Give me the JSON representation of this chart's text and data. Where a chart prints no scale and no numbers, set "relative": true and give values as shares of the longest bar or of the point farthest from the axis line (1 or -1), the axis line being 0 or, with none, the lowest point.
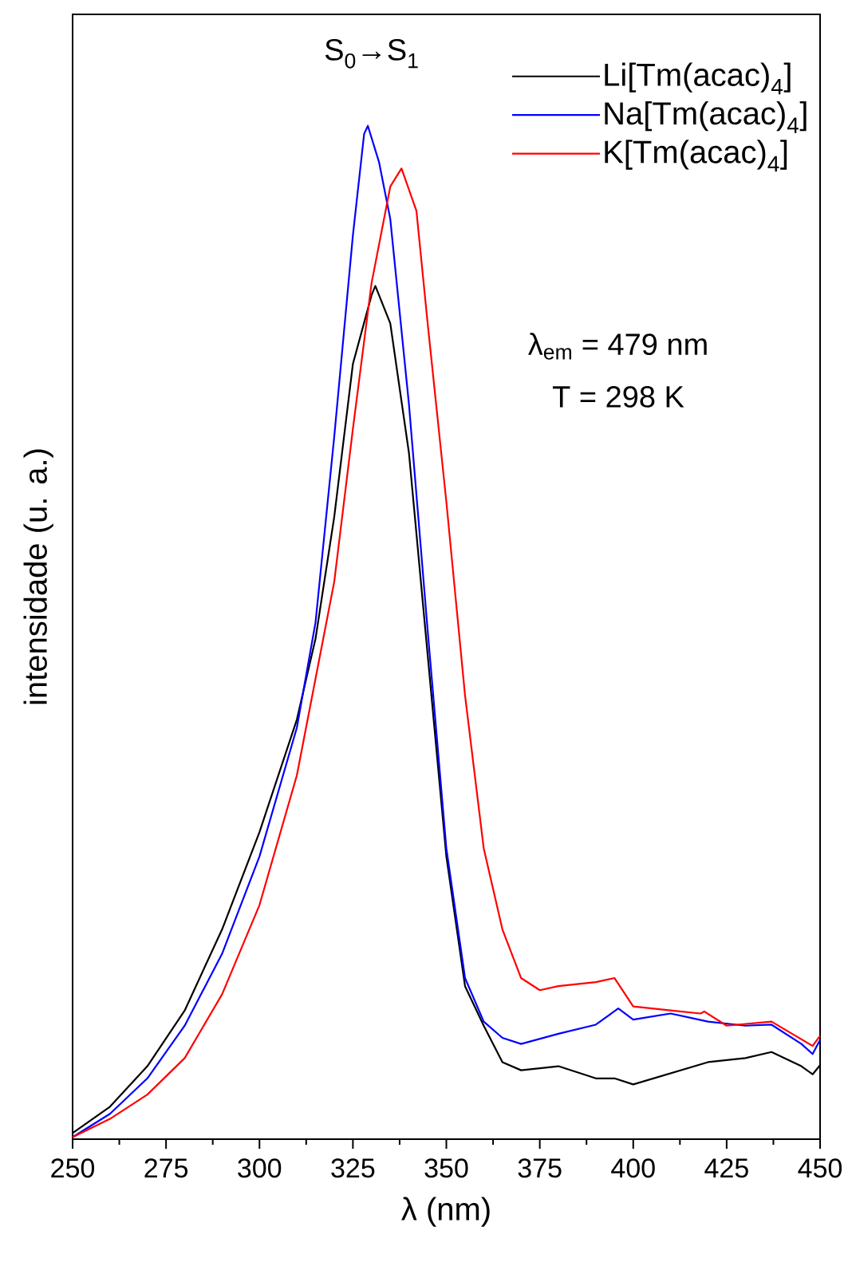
{
  "chart_data": {
    "type": "line",
    "relative": true,
    "xlabel": "λ (nm)",
    "ylabel": "intensidade (u. a.)",
    "xlim": [
      250,
      450
    ],
    "xticks": [
      250,
      275,
      300,
      325,
      350,
      375,
      400,
      425,
      450
    ],
    "legend": "top right",
    "grid": false,
    "marker": "none",
    "line_style": "solid",
    "annotations": [
      "S$_{0}$→S$_{1}$",
      "λ$_{em}$ = 479 nm",
      "T = 298 K"
    ],
    "series": [
      {
        "name": "Li[Tm(acac)$_{4}$]",
        "color": "#000000",
        "x": [
          250,
          260,
          270,
          280,
          290,
          300,
          310,
          315,
          320,
          325,
          330,
          331,
          335,
          340,
          345,
          350,
          355,
          360,
          365,
          370,
          380,
          390,
          395,
          400,
          410,
          420,
          430,
          437,
          445,
          448,
          450
        ],
        "values": [
          0.006,
          0.032,
          0.072,
          0.127,
          0.207,
          0.303,
          0.414,
          0.494,
          0.614,
          0.765,
          0.833,
          0.842,
          0.805,
          0.677,
          0.478,
          0.279,
          0.151,
          0.112,
          0.076,
          0.068,
          0.072,
          0.06,
          0.06,
          0.054,
          0.065,
          0.076,
          0.08,
          0.086,
          0.072,
          0.064,
          0.073
        ]
      },
      {
        "name": "Na[Tm(acac)$_{4}$]",
        "color": "#0000ff",
        "x": [
          250,
          260,
          270,
          280,
          290,
          300,
          310,
          315,
          320,
          325,
          328,
          329,
          332,
          335,
          340,
          345,
          350,
          355,
          360,
          365,
          370,
          380,
          390,
          396,
          400,
          410,
          420,
          430,
          437,
          445,
          448,
          450
        ],
        "values": [
          0.002,
          0.025,
          0.06,
          0.112,
          0.183,
          0.279,
          0.406,
          0.51,
          0.693,
          0.892,
          0.992,
          1.0,
          0.964,
          0.908,
          0.725,
          0.502,
          0.287,
          0.159,
          0.116,
          0.1,
          0.094,
          0.104,
          0.113,
          0.129,
          0.118,
          0.124,
          0.116,
          0.112,
          0.113,
          0.094,
          0.084,
          0.098
        ]
      },
      {
        "name": "K[Tm(acac)$_{4}$]",
        "color": "#ff0000",
        "x": [
          250,
          260,
          270,
          280,
          290,
          300,
          310,
          320,
          325,
          330,
          335,
          338,
          342,
          345,
          350,
          355,
          360,
          365,
          370,
          375,
          380,
          390,
          395,
          400,
          410,
          418,
          419,
          425,
          437,
          448,
          450
        ],
        "values": [
          0.002,
          0.02,
          0.044,
          0.08,
          0.143,
          0.231,
          0.359,
          0.55,
          0.701,
          0.845,
          0.94,
          0.958,
          0.916,
          0.805,
          0.629,
          0.438,
          0.287,
          0.207,
          0.159,
          0.147,
          0.151,
          0.155,
          0.159,
          0.131,
          0.127,
          0.124,
          0.126,
          0.112,
          0.116,
          0.092,
          0.102
        ]
      }
    ]
  }
}
